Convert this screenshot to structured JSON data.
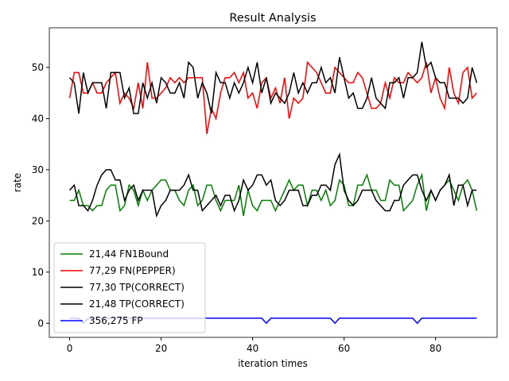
{
  "chart_data": {
    "type": "line",
    "title": "Result Analysis",
    "xlabel": "iteration times",
    "ylabel": "rate",
    "x": [
      0,
      1,
      2,
      3,
      4,
      5,
      6,
      7,
      8,
      9,
      10,
      11,
      12,
      13,
      14,
      15,
      16,
      17,
      18,
      19,
      20,
      21,
      22,
      23,
      24,
      25,
      26,
      27,
      28,
      29,
      30,
      31,
      32,
      33,
      34,
      35,
      36,
      37,
      38,
      39,
      40,
      41,
      42,
      43,
      44,
      45,
      46,
      47,
      48,
      49,
      50,
      51,
      52,
      53,
      54,
      55,
      56,
      57,
      58,
      59,
      60,
      61,
      62,
      63,
      64,
      65,
      66,
      67,
      68,
      69,
      70,
      71,
      72,
      73,
      74,
      75,
      76,
      77,
      78,
      79,
      80,
      81,
      82,
      83,
      84,
      85,
      86,
      87,
      88,
      89
    ],
    "xlim": [
      -4.45,
      93.45
    ],
    "ylim": [
      -2.75,
      57.75
    ],
    "xticks": [
      0,
      20,
      40,
      60,
      80
    ],
    "yticks": [
      0,
      10,
      20,
      30,
      40,
      50
    ],
    "legend": "lower left",
    "series": [
      {
        "name": "21,44 FN1Bound",
        "color": "#008000",
        "values": [
          24,
          24,
          26,
          23,
          23,
          22,
          23,
          23,
          26,
          27,
          27,
          22,
          23,
          27,
          26,
          23,
          26,
          24,
          26,
          27,
          28,
          28,
          26,
          26,
          24,
          23,
          26,
          27,
          23,
          24,
          27,
          27,
          24,
          22,
          24,
          24,
          24,
          27,
          21,
          26,
          23,
          22,
          24,
          24,
          24,
          22,
          24,
          26,
          28,
          26,
          27,
          27,
          23,
          26,
          26,
          24,
          26,
          23,
          24,
          28,
          27,
          23,
          23,
          27,
          27,
          29,
          26,
          26,
          24,
          24,
          28,
          27,
          27,
          22,
          23,
          24,
          27,
          29,
          22,
          26,
          24,
          26,
          27,
          28,
          26,
          24,
          27,
          28,
          26,
          22
        ]
      },
      {
        "name": "77,29 FN(PEPPER)",
        "color": "#ff0000",
        "values": [
          44,
          49,
          49,
          45,
          45,
          47,
          45,
          45,
          47,
          48,
          49,
          43,
          45,
          44,
          42,
          47,
          42,
          51,
          44,
          44,
          45,
          46,
          48,
          47,
          48,
          47,
          48,
          48,
          48,
          48,
          37,
          42,
          40,
          45,
          48,
          48,
          49,
          47,
          49,
          44,
          45,
          42,
          47,
          48,
          44,
          46,
          43,
          48,
          40,
          44,
          43,
          44,
          51,
          50,
          49,
          47,
          45,
          45,
          50,
          49,
          48,
          47,
          47,
          49,
          48,
          45,
          42,
          42,
          43,
          47,
          44,
          48,
          47,
          47,
          49,
          48,
          47,
          48,
          51,
          45,
          48,
          44,
          42,
          50,
          45,
          43,
          49,
          50,
          44,
          45
        ]
      },
      {
        "name": "77,30 TP(CORRECT)",
        "color": "#000000",
        "values": [
          48,
          47,
          41,
          49,
          45,
          47,
          47,
          47,
          42,
          49,
          49,
          49,
          44,
          46,
          41,
          41,
          47,
          44,
          47,
          43,
          48,
          47,
          45,
          45,
          47,
          44,
          51,
          50,
          44,
          47,
          45,
          41,
          49,
          47,
          47,
          44,
          47,
          45,
          47,
          50,
          47,
          51,
          45,
          48,
          43,
          45,
          44,
          43,
          45,
          49,
          45,
          47,
          45,
          47,
          47,
          50,
          47,
          48,
          45,
          52,
          48,
          44,
          45,
          42,
          42,
          44,
          48,
          44,
          43,
          42,
          47,
          47,
          48,
          44,
          48,
          48,
          49,
          55,
          50,
          51,
          48,
          47,
          47,
          44,
          44,
          44,
          43,
          44,
          50,
          47
        ]
      },
      {
        "name": "21,48 TP(CORRECT)",
        "color": "#000000",
        "values": [
          26,
          27,
          23,
          23,
          22,
          24,
          27,
          29,
          30,
          30,
          28,
          28,
          24,
          26,
          27,
          24,
          26,
          26,
          26,
          21,
          23,
          24,
          26,
          26,
          26,
          27,
          29,
          26,
          26,
          22,
          23,
          24,
          25,
          23,
          25,
          25,
          22,
          24,
          28,
          26,
          27,
          29,
          29,
          27,
          28,
          24,
          23,
          24,
          26,
          26,
          26,
          23,
          23,
          25,
          25,
          27,
          27,
          26,
          31,
          33,
          26,
          24,
          23,
          24,
          26,
          26,
          26,
          24,
          23,
          22,
          22,
          24,
          24,
          27,
          28,
          29,
          29,
          26,
          24,
          26,
          24,
          26,
          27,
          29,
          23,
          27,
          27,
          23,
          26,
          26
        ]
      },
      {
        "name": "356,275 FP",
        "color": "#0000ff",
        "values": [
          1,
          1,
          1,
          0,
          1,
          1,
          1,
          1,
          1,
          1,
          1,
          1,
          1,
          1,
          1,
          1,
          1,
          1,
          1,
          1,
          1,
          1,
          1,
          1,
          1,
          1,
          1,
          1,
          1,
          1,
          1,
          1,
          1,
          1,
          1,
          1,
          1,
          1,
          1,
          1,
          1,
          1,
          1,
          0,
          1,
          1,
          1,
          1,
          1,
          1,
          1,
          1,
          1,
          1,
          1,
          1,
          1,
          1,
          0,
          1,
          1,
          1,
          1,
          1,
          1,
          1,
          1,
          1,
          1,
          1,
          1,
          1,
          1,
          1,
          1,
          1,
          0,
          1,
          1,
          1,
          1,
          1,
          1,
          1,
          1,
          1,
          1,
          1,
          1,
          1
        ]
      }
    ]
  }
}
